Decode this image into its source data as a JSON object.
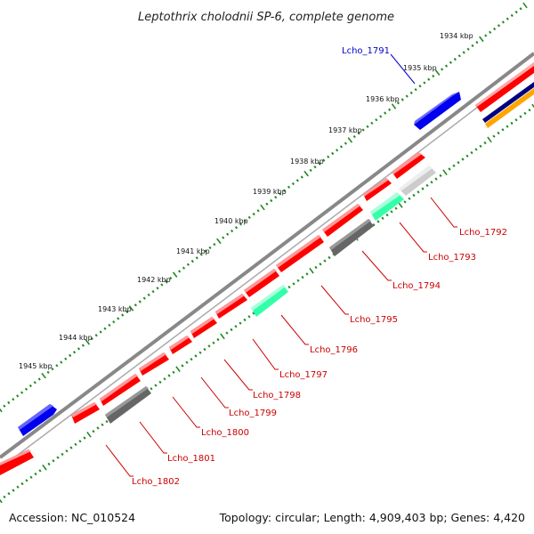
{
  "title": "Leptothrix cholodnii SP-6, complete genome",
  "footer": {
    "accession": "Accession: NC_010524",
    "summary": "Topology: circular; Length: 4,909,403 bp; Genes: 4,420"
  },
  "kbp_labels": [
    "1934 kbp",
    "1935 kbp",
    "1936 kbp",
    "1937 kbp",
    "1938 kbp",
    "1939 kbp",
    "1940 kbp",
    "1941 kbp",
    "1942 kbp",
    "1943 kbp",
    "1944 kbp",
    "1945 kbp"
  ],
  "gene_labels": [
    "Lcho_1791",
    "Lcho_1792",
    "Lcho_1793",
    "Lcho_1794",
    "Lcho_1795",
    "Lcho_1796",
    "Lcho_1797",
    "Lcho_1798",
    "Lcho_1799",
    "Lcho_1800",
    "Lcho_1801",
    "Lcho_1802"
  ],
  "colors": {
    "red": "#ff0000",
    "blue": "#0000ff",
    "grey": "#666666",
    "light_grey": "#cccccc",
    "green": "#33ffaa",
    "navy": "#000080",
    "orange": "#ffa500",
    "backbone": "#888888",
    "tick_green": "#228822",
    "label_red": "#cc0000",
    "label_blue": "#0000cc"
  }
}
